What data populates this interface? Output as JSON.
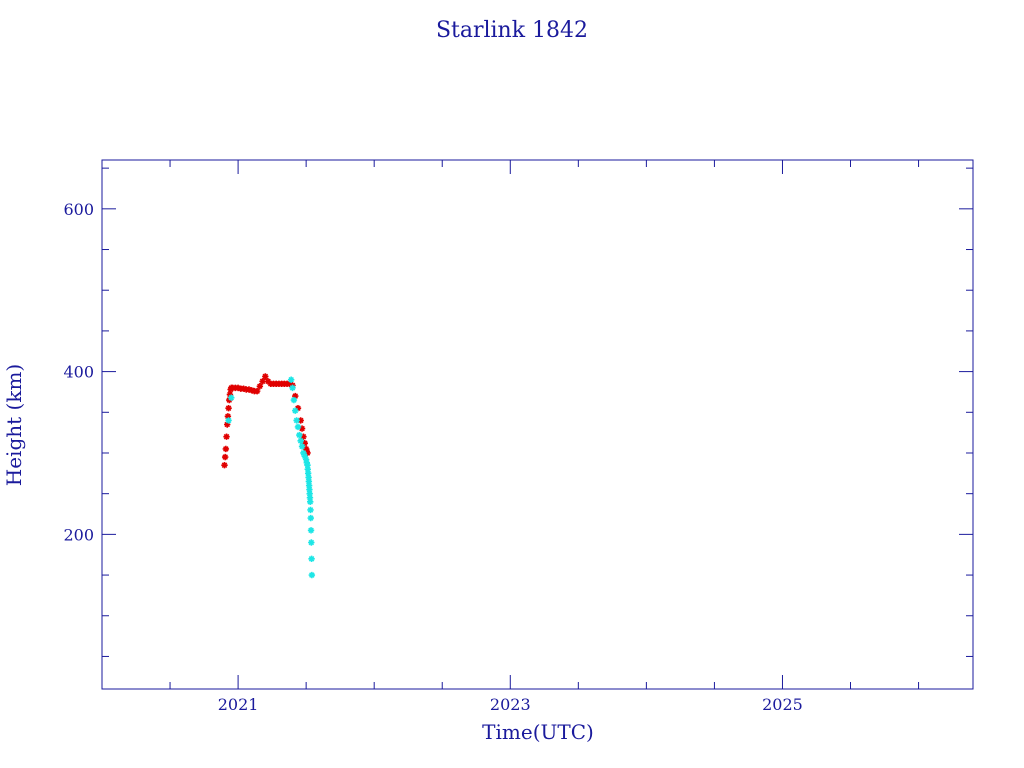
{
  "chart_data": {
    "type": "scatter",
    "title": "Starlink 1842",
    "xlabel": "Time(UTC)",
    "ylabel": "Height (km)",
    "xlim": [
      2020.0,
      2026.4
    ],
    "ylim": [
      10,
      660
    ],
    "x_ticks": [
      {
        "value": 2021,
        "label": "2021"
      },
      {
        "value": 2023,
        "label": "2023"
      },
      {
        "value": 2025,
        "label": "2025"
      }
    ],
    "y_ticks": [
      {
        "value": 200,
        "label": "200"
      },
      {
        "value": 400,
        "label": "400"
      },
      {
        "value": 600,
        "label": "600"
      }
    ],
    "grid": false,
    "colors": {
      "axis": "#1a1a9c",
      "series_red": "#e00000",
      "series_cyan": "#1ee6e6"
    },
    "series": [
      {
        "color": "#e00000",
        "marker": "star",
        "x": [
          2020.9,
          2020.905,
          2020.91,
          2020.915,
          2020.92,
          2020.925,
          2020.93,
          2020.935,
          2020.94,
          2020.945,
          2020.95,
          2020.96,
          2020.98,
          2021.0,
          2021.02,
          2021.04,
          2021.06,
          2021.08,
          2021.1,
          2021.12,
          2021.14,
          2021.16,
          2021.18,
          2021.2,
          2021.22,
          2021.24,
          2021.26,
          2021.28,
          2021.3,
          2021.32,
          2021.34,
          2021.36,
          2021.38,
          2021.4,
          2021.42,
          2021.44,
          2021.46,
          2021.47,
          2021.48,
          2021.49,
          2021.5,
          2021.505,
          2021.51
        ],
        "y": [
          285,
          295,
          305,
          320,
          335,
          345,
          355,
          365,
          372,
          378,
          380,
          380,
          380,
          380,
          379,
          379,
          378,
          378,
          377,
          376,
          376,
          382,
          388,
          394,
          388,
          385,
          385,
          385,
          385,
          385,
          385,
          385,
          385,
          383,
          370,
          355,
          340,
          330,
          320,
          312,
          305,
          302,
          300
        ]
      },
      {
        "color": "#1ee6e6",
        "marker": "star",
        "x": [
          2020.93,
          2020.95,
          2021.39,
          2021.4,
          2021.41,
          2021.42,
          2021.43,
          2021.44,
          2021.45,
          2021.46,
          2021.47,
          2021.48,
          2021.49,
          2021.5,
          2021.505,
          2021.51,
          2021.512,
          2021.515,
          2021.518,
          2021.52,
          2021.522,
          2021.524,
          2021.526,
          2021.528,
          2021.53,
          2021.532,
          2021.534,
          2021.536,
          2021.538,
          2021.54,
          2021.542
        ],
        "y": [
          340,
          368,
          390,
          380,
          365,
          352,
          340,
          332,
          322,
          315,
          308,
          300,
          296,
          292,
          288,
          285,
          280,
          275,
          270,
          265,
          260,
          255,
          250,
          245,
          240,
          230,
          220,
          205,
          190,
          170,
          150
        ]
      }
    ]
  }
}
